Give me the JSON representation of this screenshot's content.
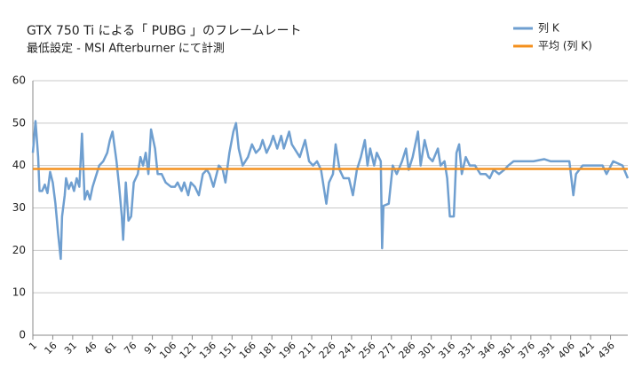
{
  "chart_data": {
    "type": "line",
    "title": "GTX 750 Ti による「 PUBG 」のフレームレート",
    "subtitle": "最低設定 - MSI Afterburner にて計測",
    "xlim": [
      1,
      449
    ],
    "xticks": [
      1,
      16,
      31,
      46,
      61,
      76,
      91,
      106,
      121,
      136,
      151,
      166,
      181,
      196,
      211,
      226,
      241,
      256,
      271,
      286,
      301,
      316,
      331,
      346,
      361,
      376,
      391,
      406,
      421,
      436
    ],
    "ylim": [
      0,
      60
    ],
    "yticks": [
      0,
      10,
      20,
      30,
      40,
      50,
      60
    ],
    "grid": true,
    "legend": "right",
    "series": [
      {
        "name": "列 K",
        "color": "#6f9fd0",
        "x": [
          1,
          3,
          5,
          6,
          8,
          10,
          12,
          14,
          16,
          18,
          20,
          22,
          23,
          25,
          26,
          28,
          30,
          32,
          34,
          36,
          38,
          40,
          42,
          44,
          46,
          48,
          51,
          54,
          57,
          59,
          61,
          64,
          66,
          68,
          69,
          71,
          73,
          75,
          77,
          80,
          82,
          84,
          86,
          88,
          90,
          93,
          95,
          98,
          101,
          105,
          108,
          110,
          113,
          115,
          118,
          120,
          123,
          126,
          129,
          132,
          134,
          137,
          141,
          144,
          146,
          149,
          152,
          154,
          156,
          159,
          163,
          166,
          169,
          172,
          174,
          177,
          180,
          182,
          185,
          188,
          190,
          194,
          196,
          200,
          202,
          206,
          209,
          212,
          215,
          218,
          220,
          222,
          224,
          227,
          229,
          232,
          235,
          239,
          242,
          245,
          248,
          251,
          253,
          255,
          258,
          260,
          263,
          264,
          265,
          269,
          272,
          275,
          279,
          282,
          284,
          287,
          291,
          293,
          296,
          299,
          302,
          306,
          308,
          311,
          313,
          315,
          318,
          320,
          322,
          324,
          327,
          330,
          334,
          338,
          342,
          345,
          348,
          352,
          356,
          359,
          363,
          371,
          378,
          386,
          391,
          398,
          405,
          408,
          410,
          415,
          421,
          430,
          433,
          438,
          445,
          449
        ],
        "values": [
          43,
          50.5,
          42,
          34,
          34,
          35.5,
          33.5,
          38.5,
          36,
          31,
          24,
          18,
          28,
          33,
          37,
          34.5,
          36,
          34,
          37,
          35,
          47.5,
          32,
          34,
          32,
          35,
          37,
          40,
          41,
          43,
          46,
          48,
          41,
          35,
          28,
          22.5,
          36,
          27,
          28,
          36,
          38,
          42,
          40,
          43,
          38,
          48.5,
          44,
          38,
          38,
          36,
          35,
          35,
          36,
          34,
          36,
          33,
          36,
          35,
          33,
          38,
          39,
          38,
          35,
          40,
          39,
          36,
          43,
          48,
          50,
          44,
          40,
          42,
          45,
          43,
          44,
          46,
          43,
          45,
          47,
          44,
          47,
          44,
          48,
          45,
          43,
          42,
          46,
          41,
          40,
          41,
          39,
          35,
          31,
          36,
          38,
          45,
          39,
          37,
          37,
          33,
          39,
          42,
          46,
          40,
          44,
          40,
          43,
          41,
          20.5,
          30.5,
          31,
          40,
          38,
          41,
          44,
          39,
          42,
          48,
          40,
          46,
          42,
          41,
          44,
          40,
          41,
          37,
          28,
          28,
          43,
          45,
          38,
          42,
          40,
          40,
          38,
          38,
          37,
          39,
          38,
          39,
          40,
          41,
          41,
          41,
          41.5,
          41,
          41,
          41,
          33,
          38,
          40,
          40,
          40,
          38,
          41,
          40,
          37
        ]
      },
      {
        "name": "平均 (列 K)",
        "color": "#f4901e",
        "x": [
          1,
          449
        ],
        "values": [
          39.2,
          39.2
        ]
      }
    ]
  }
}
